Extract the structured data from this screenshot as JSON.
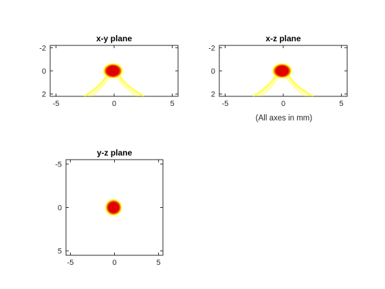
{
  "figure": {
    "note": "(All axes in mm)"
  },
  "colors": {
    "core": "#e00000",
    "halo": "#ffff3c",
    "axis": "#262626",
    "background": "#ffffff"
  },
  "chart_data": [
    {
      "type": "heatmap",
      "title": "x-y plane",
      "xlim": [
        -5.5,
        5.5
      ],
      "ylim": [
        -2.2,
        2.2
      ],
      "y_reversed": true,
      "xticks": [
        -5,
        0,
        5
      ],
      "yticks": [
        -2,
        0,
        2
      ],
      "xtick_labels": [
        "-5",
        "0",
        "5"
      ],
      "ytick_labels": [
        "-2",
        "0",
        "2"
      ],
      "spot": {
        "x": -0.1,
        "y": 0,
        "core_radius": 0.5,
        "halo_radius": 0.8
      },
      "cone": {
        "apex": [
          -0.1,
          -0.4
        ],
        "left_end": [
          -2.6,
          2.2
        ],
        "right_end": [
          2.6,
          2.2
        ]
      }
    },
    {
      "type": "heatmap",
      "title": "x-z plane",
      "xlim": [
        -5.5,
        5.5
      ],
      "ylim": [
        -2.2,
        2.2
      ],
      "y_reversed": true,
      "xticks": [
        -5,
        0,
        5
      ],
      "yticks": [
        -2,
        0,
        2
      ],
      "xtick_labels": [
        "-5",
        "0",
        "5"
      ],
      "ytick_labels": [
        "-2",
        "0",
        "2"
      ],
      "spot": {
        "x": -0.1,
        "y": 0,
        "core_radius": 0.5,
        "halo_radius": 0.8
      },
      "cone": {
        "apex": [
          -0.1,
          -0.4
        ],
        "left_end": [
          -2.6,
          2.2
        ],
        "right_end": [
          2.6,
          2.2
        ]
      }
    },
    {
      "type": "heatmap",
      "title": "y-z plane",
      "xlim": [
        -5.5,
        5.5
      ],
      "ylim": [
        -5.5,
        5.5
      ],
      "y_reversed": true,
      "xticks": [
        -5,
        0,
        5
      ],
      "yticks": [
        -5,
        0,
        5
      ],
      "xtick_labels": [
        "-5",
        "0",
        "5"
      ],
      "ytick_labels": [
        "-5",
        "0",
        "5"
      ],
      "spot": {
        "x": -0.1,
        "y": 0,
        "core_radius": 0.6,
        "halo_radius": 0.9
      },
      "cone": null
    }
  ]
}
